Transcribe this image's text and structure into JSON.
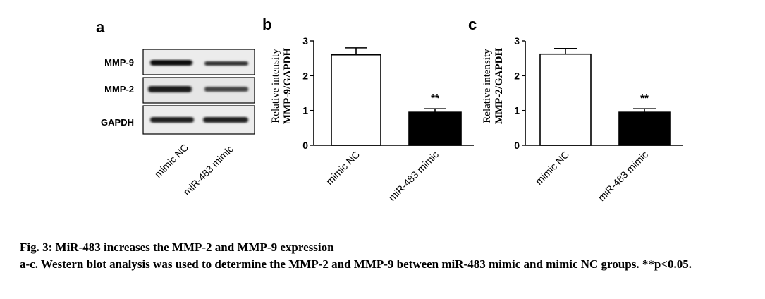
{
  "caption": {
    "title": "Fig. 3: MiR-483 increases the MMP-2 and MMP-9 expression",
    "body": "a-c. Western blot analysis was used to determine the MMP-2 and MMP-9 between miR-483 mimic and mimic NC groups. **p<0.05."
  },
  "panel_a": {
    "letter": "a",
    "rows": [
      "MMP-9",
      "MMP-2",
      "GAPDH"
    ],
    "lanes": [
      "mimic NC",
      "miR-483 mimic"
    ],
    "band_intensity": {
      "MMP-9": [
        0.95,
        0.55
      ],
      "MMP-2": [
        0.9,
        0.5
      ],
      "GAPDH": [
        0.85,
        0.85
      ]
    }
  },
  "colors": {
    "bar_nc": "#ffffff",
    "bar_mimic": "#000000",
    "stroke": "#000000"
  },
  "chart_data": [
    {
      "type": "bar",
      "panel": "b",
      "categories": [
        "mimic NC",
        "miR-483 mimic"
      ],
      "values": [
        2.6,
        0.95
      ],
      "error": [
        0.2,
        0.1
      ],
      "significance": [
        "",
        "**"
      ],
      "ylabel_line1": "Relative intensity",
      "ylabel_line2": "MMP-9/GAPDH",
      "ylim": [
        0,
        3
      ],
      "yticks": [
        "0",
        "1",
        "2",
        "3"
      ]
    },
    {
      "type": "bar",
      "panel": "c",
      "categories": [
        "mimic NC",
        "miR-483 mimic"
      ],
      "values": [
        2.62,
        0.95
      ],
      "error": [
        0.16,
        0.1
      ],
      "significance": [
        "",
        "**"
      ],
      "ylabel_line1": "Relative intensity",
      "ylabel_line2": "MMP-2/GAPDH",
      "ylim": [
        0,
        3
      ],
      "yticks": [
        "0",
        "1",
        "2",
        "3"
      ]
    }
  ]
}
